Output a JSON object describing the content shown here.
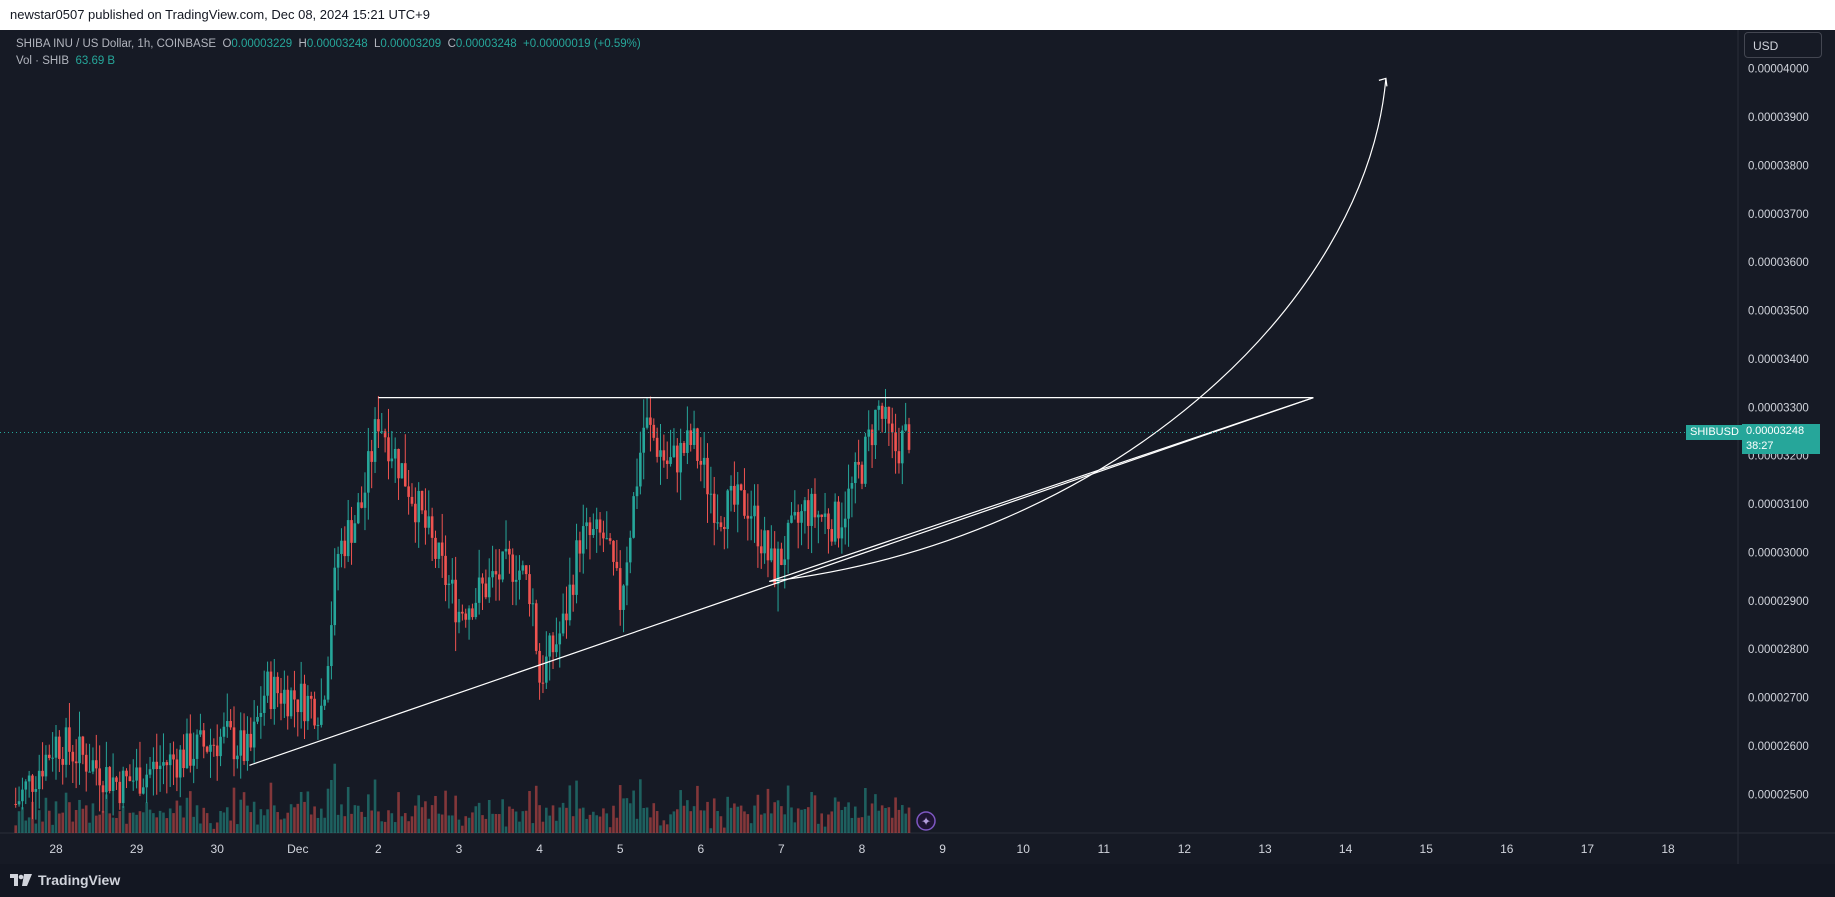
{
  "header": {
    "text": "newstar0507 published on TradingView.com, Dec 08, 2024 15:21 UTC+9"
  },
  "legend": {
    "symbol": "SHIBA INU / US Dollar, 1h, COINBASE",
    "o_label": "O",
    "o_value": "0.00003229",
    "h_label": "H",
    "h_value": "0.00003248",
    "l_label": "L",
    "l_value": "0.00003209",
    "c_label": "C",
    "c_value": "0.00003248",
    "change": "+0.00000019 (+0.59%)",
    "vol_label": "Vol · SHIB",
    "vol_value": "63.69 B"
  },
  "currency": "USD",
  "last_price": {
    "symbol": "SHIBUSD",
    "price": "0.00003248",
    "countdown": "38:27"
  },
  "footer": {
    "logo_text": "TradingView"
  },
  "colors": {
    "up": "#26a69a",
    "down": "#ef5350",
    "background": "#161a25",
    "axis_text": "#d1d4dc",
    "drawing": "#ffffff"
  },
  "chart_data": {
    "type": "candlestick",
    "symbol": "SHIBUSD",
    "interval": "1h",
    "yaxis_ticks": [
      "0.00004000",
      "0.00003900",
      "0.00003800",
      "0.00003700",
      "0.00003600",
      "0.00003500",
      "0.00003400",
      "0.00003300",
      "0.00003200",
      "0.00003100",
      "0.00003000",
      "0.00002900",
      "0.00002800",
      "0.00002700",
      "0.00002600",
      "0.00002500"
    ],
    "ylim": [
      2.42e-05,
      4.08e-05
    ],
    "xaxis_ticks": [
      "28",
      "29",
      "30",
      "Dec",
      "2",
      "3",
      "4",
      "5",
      "6",
      "7",
      "8",
      "9",
      "10",
      "11",
      "12",
      "13",
      "14",
      "15",
      "16",
      "17",
      "18"
    ],
    "xlim_days": [
      27.5,
      18.7
    ],
    "last_close": 3.248e-05,
    "price_path": [
      {
        "day": 27.5,
        "price": 2.48e-05
      },
      {
        "day": 28.0,
        "price": 2.61e-05
      },
      {
        "day": 28.4,
        "price": 2.57e-05
      },
      {
        "day": 28.8,
        "price": 2.52e-05
      },
      {
        "day": 29.3,
        "price": 2.56e-05
      },
      {
        "day": 29.7,
        "price": 2.59e-05
      },
      {
        "day": 30.1,
        "price": 2.62e-05
      },
      {
        "day": 30.4,
        "price": 2.58e-05
      },
      {
        "day": 30.6,
        "price": 2.72e-05
      },
      {
        "day": 31.0,
        "price": 2.7e-05
      },
      {
        "day": 31.3,
        "price": 2.68e-05
      },
      {
        "day": 31.5,
        "price": 3e-05
      },
      {
        "day": 31.8,
        "price": 3.1e-05
      },
      {
        "day": 32.0,
        "price": 3.28e-05
      },
      {
        "day": 32.4,
        "price": 3.13e-05
      },
      {
        "day": 32.7,
        "price": 3e-05
      },
      {
        "day": 33.0,
        "price": 2.88e-05
      },
      {
        "day": 33.4,
        "price": 2.94e-05
      },
      {
        "day": 33.7,
        "price": 2.98e-05
      },
      {
        "day": 33.9,
        "price": 2.92e-05
      },
      {
        "day": 34.0,
        "price": 2.74e-05
      },
      {
        "day": 34.3,
        "price": 2.85e-05
      },
      {
        "day": 34.5,
        "price": 3.03e-05
      },
      {
        "day": 34.8,
        "price": 3.03e-05
      },
      {
        "day": 35.0,
        "price": 2.9e-05
      },
      {
        "day": 35.3,
        "price": 3.27e-05
      },
      {
        "day": 35.6,
        "price": 3.18e-05
      },
      {
        "day": 35.9,
        "price": 3.23e-05
      },
      {
        "day": 36.2,
        "price": 3.09e-05
      },
      {
        "day": 36.6,
        "price": 3.1e-05
      },
      {
        "day": 36.9,
        "price": 2.96e-05
      },
      {
        "day": 37.3,
        "price": 3.09e-05
      },
      {
        "day": 37.7,
        "price": 3.06e-05
      },
      {
        "day": 38.0,
        "price": 3.18e-05
      },
      {
        "day": 38.2,
        "price": 3.3e-05
      },
      {
        "day": 38.4,
        "price": 3.21e-05
      },
      {
        "day": 38.6,
        "price": 3.25e-05
      }
    ],
    "volume": {
      "label": "Vol · SHIB",
      "last": "63.69 B"
    },
    "drawings": [
      {
        "type": "horizontal_line",
        "price": 3.32e-05,
        "from_day": 32.0,
        "to_day": 43.6
      },
      {
        "type": "trendline",
        "from": {
          "day": 30.4,
          "price": 2.56e-05
        },
        "to": {
          "day": 43.6,
          "price": 3.32e-05
        }
      },
      {
        "type": "trendline",
        "from": {
          "day": 36.85,
          "price": 2.94e-05
        },
        "to": {
          "day": 43.6,
          "price": 3.32e-05
        }
      },
      {
        "type": "curved_arrow",
        "from": {
          "day": 36.85,
          "price": 2.94e-05
        },
        "to": {
          "day": 44.5,
          "price": 3.98e-05
        }
      }
    ]
  }
}
